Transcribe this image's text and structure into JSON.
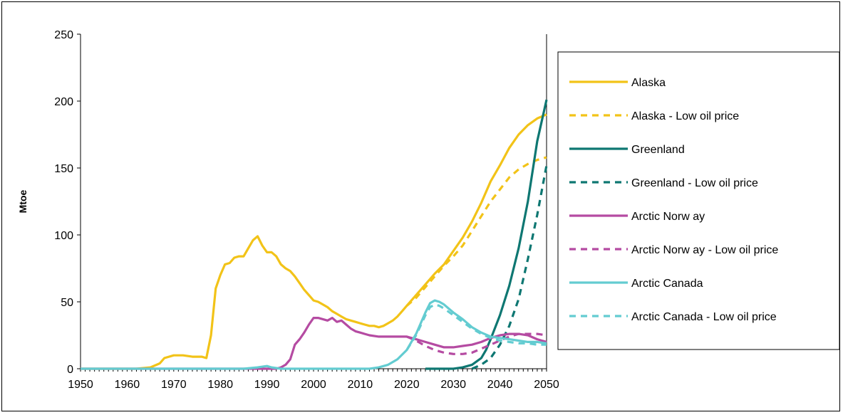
{
  "chart_data": {
    "type": "line",
    "title": "",
    "xlabel": "",
    "ylabel": "Mtoe",
    "xlim": [
      1950,
      2050
    ],
    "ylim": [
      0,
      250
    ],
    "xticks": [
      1950,
      1960,
      1970,
      1980,
      1990,
      2000,
      2010,
      2020,
      2030,
      2040,
      2050
    ],
    "yticks": [
      0,
      50,
      100,
      150,
      200,
      250
    ],
    "grid": false,
    "legend_position": "right",
    "series": [
      {
        "name": "Alaska",
        "color": "#F2C318",
        "dash": "solid",
        "points": [
          [
            1950,
            0
          ],
          [
            1962,
            0
          ],
          [
            1965,
            1
          ],
          [
            1967,
            4
          ],
          [
            1968,
            8
          ],
          [
            1970,
            10
          ],
          [
            1972,
            10
          ],
          [
            1974,
            9
          ],
          [
            1976,
            9
          ],
          [
            1977,
            8
          ],
          [
            1978,
            25
          ],
          [
            1979,
            60
          ],
          [
            1980,
            70
          ],
          [
            1981,
            78
          ],
          [
            1982,
            79
          ],
          [
            1983,
            83
          ],
          [
            1984,
            84
          ],
          [
            1985,
            84
          ],
          [
            1986,
            90
          ],
          [
            1987,
            96
          ],
          [
            1988,
            99
          ],
          [
            1989,
            92
          ],
          [
            1990,
            87
          ],
          [
            1991,
            87
          ],
          [
            1992,
            84
          ],
          [
            1993,
            78
          ],
          [
            1994,
            75
          ],
          [
            1995,
            73
          ],
          [
            1996,
            69
          ],
          [
            1997,
            64
          ],
          [
            1998,
            59
          ],
          [
            1999,
            55
          ],
          [
            2000,
            51
          ],
          [
            2001,
            50
          ],
          [
            2002,
            48
          ],
          [
            2003,
            46
          ],
          [
            2004,
            43
          ],
          [
            2005,
            41
          ],
          [
            2006,
            39
          ],
          [
            2007,
            37
          ],
          [
            2008,
            36
          ],
          [
            2009,
            35
          ],
          [
            2010,
            34
          ],
          [
            2011,
            33
          ],
          [
            2012,
            32
          ],
          [
            2013,
            32
          ],
          [
            2014,
            31
          ],
          [
            2015,
            32
          ],
          [
            2016,
            34
          ],
          [
            2017,
            36
          ],
          [
            2018,
            39
          ],
          [
            2019,
            43
          ],
          [
            2020,
            47
          ],
          [
            2022,
            55
          ],
          [
            2024,
            63
          ],
          [
            2026,
            71
          ],
          [
            2028,
            78
          ],
          [
            2030,
            88
          ],
          [
            2032,
            98
          ],
          [
            2034,
            110
          ],
          [
            2036,
            124
          ],
          [
            2038,
            140
          ],
          [
            2040,
            152
          ],
          [
            2042,
            165
          ],
          [
            2044,
            175
          ],
          [
            2046,
            182
          ],
          [
            2048,
            187
          ],
          [
            2050,
            190
          ]
        ]
      },
      {
        "name": "Alaska - Low  oil price",
        "color": "#F2C318",
        "dash": "dashed",
        "points": [
          [
            2020,
            47
          ],
          [
            2022,
            53
          ],
          [
            2024,
            61
          ],
          [
            2026,
            69
          ],
          [
            2028,
            77
          ],
          [
            2030,
            84
          ],
          [
            2032,
            92
          ],
          [
            2034,
            103
          ],
          [
            2036,
            114
          ],
          [
            2038,
            125
          ],
          [
            2040,
            134
          ],
          [
            2042,
            143
          ],
          [
            2044,
            149
          ],
          [
            2046,
            153
          ],
          [
            2048,
            156
          ],
          [
            2050,
            158
          ]
        ]
      },
      {
        "name": "Greenland",
        "color": "#0E7772",
        "dash": "solid",
        "points": [
          [
            2024,
            0
          ],
          [
            2028,
            0
          ],
          [
            2030,
            0
          ],
          [
            2032,
            1
          ],
          [
            2034,
            3
          ],
          [
            2036,
            8
          ],
          [
            2037,
            14
          ],
          [
            2038,
            22
          ],
          [
            2040,
            40
          ],
          [
            2042,
            62
          ],
          [
            2044,
            90
          ],
          [
            2046,
            125
          ],
          [
            2048,
            170
          ],
          [
            2050,
            201
          ]
        ]
      },
      {
        "name": "Greenland - Low  oil price",
        "color": "#0E7772",
        "dash": "dashed",
        "points": [
          [
            2034,
            0
          ],
          [
            2036,
            3
          ],
          [
            2038,
            8
          ],
          [
            2040,
            18
          ],
          [
            2042,
            32
          ],
          [
            2044,
            52
          ],
          [
            2046,
            82
          ],
          [
            2048,
            115
          ],
          [
            2050,
            152
          ]
        ]
      },
      {
        "name": "Arctic Norw ay",
        "color": "#B54BA2",
        "dash": "solid",
        "points": [
          [
            1950,
            0
          ],
          [
            1992,
            0
          ],
          [
            1993,
            1
          ],
          [
            1994,
            3
          ],
          [
            1995,
            7
          ],
          [
            1996,
            18
          ],
          [
            1997,
            22
          ],
          [
            1998,
            27
          ],
          [
            1999,
            33
          ],
          [
            2000,
            38
          ],
          [
            2001,
            38
          ],
          [
            2002,
            37
          ],
          [
            2003,
            36
          ],
          [
            2004,
            38
          ],
          [
            2005,
            35
          ],
          [
            2006,
            36
          ],
          [
            2007,
            33
          ],
          [
            2008,
            30
          ],
          [
            2009,
            28
          ],
          [
            2010,
            27
          ],
          [
            2011,
            26
          ],
          [
            2012,
            25
          ],
          [
            2014,
            24
          ],
          [
            2016,
            24
          ],
          [
            2018,
            24
          ],
          [
            2020,
            24
          ],
          [
            2022,
            22
          ],
          [
            2024,
            20
          ],
          [
            2026,
            18
          ],
          [
            2028,
            16
          ],
          [
            2030,
            16
          ],
          [
            2032,
            17
          ],
          [
            2034,
            18
          ],
          [
            2036,
            20
          ],
          [
            2038,
            23
          ],
          [
            2040,
            25
          ],
          [
            2042,
            26
          ],
          [
            2044,
            26
          ],
          [
            2046,
            25
          ],
          [
            2048,
            22
          ],
          [
            2050,
            20
          ]
        ]
      },
      {
        "name": "Arctic Norw ay - Low  oil price",
        "color": "#B54BA2",
        "dash": "dashed",
        "points": [
          [
            2020,
            24
          ],
          [
            2022,
            21
          ],
          [
            2024,
            17
          ],
          [
            2026,
            14
          ],
          [
            2028,
            12
          ],
          [
            2030,
            11
          ],
          [
            2032,
            11
          ],
          [
            2034,
            12
          ],
          [
            2036,
            15
          ],
          [
            2038,
            18
          ],
          [
            2040,
            21
          ],
          [
            2042,
            24
          ],
          [
            2044,
            26
          ],
          [
            2046,
            26
          ],
          [
            2048,
            26
          ],
          [
            2050,
            25
          ]
        ]
      },
      {
        "name": "Arctic Canada",
        "color": "#63CCD1",
        "dash": "solid",
        "points": [
          [
            1950,
            0
          ],
          [
            1985,
            0
          ],
          [
            1988,
            1
          ],
          [
            1990,
            2
          ],
          [
            1991,
            1
          ],
          [
            1993,
            0
          ],
          [
            2012,
            0
          ],
          [
            2014,
            1
          ],
          [
            2016,
            3
          ],
          [
            2018,
            7
          ],
          [
            2020,
            14
          ],
          [
            2022,
            26
          ],
          [
            2024,
            42
          ],
          [
            2025,
            49
          ],
          [
            2026,
            51
          ],
          [
            2027,
            50
          ],
          [
            2028,
            48
          ],
          [
            2030,
            42
          ],
          [
            2032,
            37
          ],
          [
            2034,
            31
          ],
          [
            2036,
            27
          ],
          [
            2038,
            24
          ],
          [
            2040,
            23
          ],
          [
            2042,
            22
          ],
          [
            2044,
            21
          ],
          [
            2046,
            20
          ],
          [
            2048,
            20
          ],
          [
            2050,
            19
          ]
        ]
      },
      {
        "name": "Arctic Canada - Low  oil price",
        "color": "#63CCD1",
        "dash": "dashed",
        "points": [
          [
            2020,
            14
          ],
          [
            2022,
            25
          ],
          [
            2024,
            40
          ],
          [
            2025,
            46
          ],
          [
            2026,
            48
          ],
          [
            2027,
            47
          ],
          [
            2028,
            45
          ],
          [
            2030,
            40
          ],
          [
            2032,
            35
          ],
          [
            2034,
            30
          ],
          [
            2036,
            26
          ],
          [
            2038,
            23
          ],
          [
            2040,
            21
          ],
          [
            2042,
            20
          ],
          [
            2044,
            19
          ],
          [
            2046,
            19
          ],
          [
            2048,
            18
          ],
          [
            2050,
            18
          ]
        ]
      }
    ]
  }
}
